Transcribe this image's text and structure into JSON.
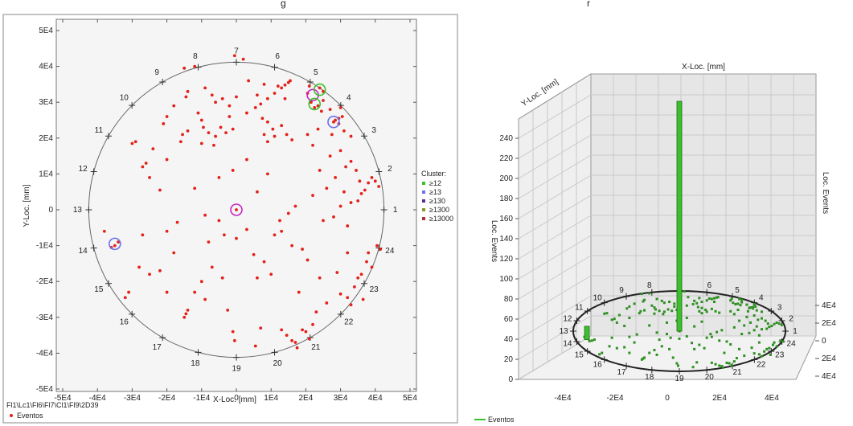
{
  "caption_top": "g",
  "caption_right": "r",
  "colors": {
    "event": "#e32119",
    "axis": "#555555",
    "grid": "#c9c9c9",
    "bar": "#3cbf2e",
    "panel_bg": "#eaeaea",
    "sel_purple": "#c428c4",
    "sel_blue": "#6e6ef0",
    "sel_green": "#3cbf2e"
  },
  "chart_data": [
    {
      "type": "scatter",
      "xlabel": "X-Loc. [mm]",
      "ylabel": "Y-Loc. [mm]",
      "xlim": [
        -50000,
        50000
      ],
      "ylim": [
        -50000,
        50000
      ],
      "x_ticks": [
        "-5E4",
        "-4E4",
        "-3E4",
        "-2E4",
        "-1E4",
        "0",
        "1E4",
        "2E4",
        "3E4",
        "4E4",
        "5E4"
      ],
      "y_ticks": [
        "5E4",
        "4E4",
        "3E4",
        "2E4",
        "1E4",
        "0",
        "-1E4",
        "-2E4",
        "-3E4",
        "-4E4",
        "-5E4"
      ],
      "grid": false,
      "circle_radius": 42500,
      "sensors": [
        "1",
        "2",
        "3",
        "4",
        "5",
        "6",
        "7",
        "8",
        "9",
        "10",
        "11",
        "12",
        "13",
        "14",
        "15",
        "16",
        "17",
        "18",
        "19",
        "20",
        "21",
        "22",
        "23",
        "24"
      ],
      "legend_title": "Cluster:",
      "legend": [
        {
          "label": "≥12",
          "color": "#3cbf2e"
        },
        {
          "label": "≥13",
          "color": "#6e6ef0"
        },
        {
          "label": "≥130",
          "color": "#5a2d8c"
        },
        {
          "label": "≥1300",
          "color": "#7f9c2a"
        },
        {
          "label": "≥13000",
          "color": "#b0303a"
        }
      ],
      "footer_path": "Fl1\\Lc1\\Fl6\\Fl7\\Cl1\\Fl9\\2D39",
      "series_legend": "Eventos",
      "selections": [
        {
          "x": 0,
          "y": 0,
          "color": "purple"
        },
        {
          "x": 22000,
          "y": 32000,
          "color": "purple"
        },
        {
          "x": 24000,
          "y": 33500,
          "color": "green"
        },
        {
          "x": 22500,
          "y": 29500,
          "color": "green"
        },
        {
          "x": 28000,
          "y": 24500,
          "color": "blue"
        },
        {
          "x": -35000,
          "y": -9500,
          "color": "blue"
        }
      ],
      "points": [
        [
          0,
          0
        ],
        [
          -500,
          43000
        ],
        [
          2000,
          42000
        ],
        [
          -12000,
          40000
        ],
        [
          -15000,
          39500
        ],
        [
          8000,
          35000
        ],
        [
          12000,
          34500
        ],
        [
          14000,
          34800
        ],
        [
          15000,
          35500
        ],
        [
          15500,
          36000
        ],
        [
          13000,
          34000
        ],
        [
          11000,
          32500
        ],
        [
          9000,
          31000
        ],
        [
          7000,
          29500
        ],
        [
          6000,
          32000
        ],
        [
          -9000,
          34000
        ],
        [
          -7000,
          32000
        ],
        [
          -6000,
          30000
        ],
        [
          -4000,
          31000
        ],
        [
          -2000,
          29000
        ],
        [
          0,
          31500
        ],
        [
          -14000,
          33000
        ],
        [
          -14500,
          31500
        ],
        [
          -18000,
          29000
        ],
        [
          -20000,
          26000
        ],
        [
          -21000,
          24000
        ],
        [
          -11000,
          27000
        ],
        [
          -10000,
          25000
        ],
        [
          -9500,
          23000
        ],
        [
          -8000,
          21500
        ],
        [
          -6000,
          20500
        ],
        [
          -4500,
          23000
        ],
        [
          -2000,
          26000
        ],
        [
          3000,
          27000
        ],
        [
          5500,
          28500
        ],
        [
          7500,
          25500
        ],
        [
          9000,
          24500
        ],
        [
          10500,
          22500
        ],
        [
          13000,
          23500
        ],
        [
          14500,
          21000
        ],
        [
          16000,
          19500
        ],
        [
          9000,
          19000
        ],
        [
          11000,
          20500
        ],
        [
          8000,
          21000
        ],
        [
          -3000,
          21500
        ],
        [
          -1000,
          22500
        ],
        [
          -6500,
          18000
        ],
        [
          -10000,
          18500
        ],
        [
          -14000,
          22000
        ],
        [
          -15500,
          21000
        ],
        [
          -16000,
          19000
        ],
        [
          -29000,
          19000
        ],
        [
          -30000,
          18500
        ],
        [
          -27000,
          12000
        ],
        [
          -25000,
          9000
        ],
        [
          -22000,
          5500
        ],
        [
          -20000,
          -6000
        ],
        [
          -17000,
          -3500
        ],
        [
          -9000,
          -1500
        ],
        [
          -5000,
          -3000
        ],
        [
          -3500,
          -7000
        ],
        [
          0,
          -8000
        ],
        [
          3000,
          -5500
        ],
        [
          5000,
          -12500
        ],
        [
          8000,
          -14500
        ],
        [
          10000,
          -18000
        ],
        [
          6000,
          -19000
        ],
        [
          -4000,
          -19000
        ],
        [
          -7000,
          -16000
        ],
        [
          -10000,
          -20000
        ],
        [
          -12000,
          -23000
        ],
        [
          -20000,
          -23000
        ],
        [
          -25000,
          -18000
        ],
        [
          -28000,
          -16000
        ],
        [
          -31000,
          -23000
        ],
        [
          -32000,
          -24500
        ],
        [
          -34000,
          -9000
        ],
        [
          -35000,
          -10000
        ],
        [
          -36000,
          -10500
        ],
        [
          -38000,
          -6000
        ],
        [
          -14000,
          -28000
        ],
        [
          -14500,
          -29000
        ],
        [
          -15000,
          -30000
        ],
        [
          -2500,
          -28000
        ],
        [
          -1000,
          -34000
        ],
        [
          -500,
          -36500
        ],
        [
          7000,
          -33000
        ],
        [
          13000,
          -33500
        ],
        [
          14500,
          -35000
        ],
        [
          16000,
          -36500
        ],
        [
          17000,
          -37000
        ],
        [
          17500,
          -38500
        ],
        [
          19000,
          -33500
        ],
        [
          20000,
          -34000
        ],
        [
          21000,
          -36000
        ],
        [
          22000,
          -32000
        ],
        [
          23000,
          -28500
        ],
        [
          26000,
          -26000
        ],
        [
          30000,
          -23500
        ],
        [
          32000,
          -24500
        ],
        [
          34000,
          -21500
        ],
        [
          35000,
          -19000
        ],
        [
          36000,
          -18000
        ],
        [
          37500,
          -14500
        ],
        [
          38000,
          -12000
        ],
        [
          39000,
          -16000
        ],
        [
          40500,
          -10000
        ],
        [
          41500,
          -11000
        ],
        [
          32000,
          -12000
        ],
        [
          29000,
          -17500
        ],
        [
          24000,
          -19000
        ],
        [
          20500,
          -14000
        ],
        [
          19000,
          -11000
        ],
        [
          16000,
          -10000
        ],
        [
          13000,
          -6000
        ],
        [
          12500,
          -3000
        ],
        [
          17000,
          1000
        ],
        [
          22000,
          4000
        ],
        [
          25000,
          -3000
        ],
        [
          28000,
          -2000
        ],
        [
          30000,
          1000
        ],
        [
          31000,
          5000
        ],
        [
          32000,
          -4500
        ],
        [
          33000,
          2000
        ],
        [
          35000,
          2500
        ],
        [
          36000,
          4500
        ],
        [
          37000,
          5500
        ],
        [
          38000,
          7500
        ],
        [
          39000,
          9000
        ],
        [
          40000,
          8000
        ],
        [
          41000,
          6500
        ],
        [
          35500,
          8000
        ],
        [
          34500,
          11000
        ],
        [
          33000,
          13500
        ],
        [
          31500,
          12000
        ],
        [
          28500,
          9000
        ],
        [
          26000,
          6000
        ],
        [
          24000,
          11000
        ],
        [
          27000,
          15000
        ],
        [
          30000,
          16500
        ],
        [
          22000,
          18000
        ],
        [
          20500,
          21000
        ],
        [
          23500,
          22500
        ],
        [
          27500,
          21000
        ],
        [
          29500,
          24000
        ],
        [
          31000,
          22000
        ],
        [
          33000,
          20500
        ],
        [
          30000,
          28500
        ],
        [
          27000,
          28000
        ],
        [
          25000,
          30500
        ],
        [
          21500,
          30000
        ],
        [
          20500,
          32500
        ],
        [
          21000,
          34500
        ],
        [
          24000,
          34000
        ],
        [
          25000,
          33000
        ],
        [
          22500,
          28500
        ],
        [
          23500,
          29000
        ],
        [
          24500,
          27500
        ],
        [
          28000,
          24500
        ],
        [
          28500,
          25000
        ],
        [
          29500,
          25500
        ],
        [
          30500,
          26000
        ],
        [
          -27000,
          -7000
        ],
        [
          -8000,
          -9000
        ],
        [
          -22000,
          -17000
        ],
        [
          -18000,
          -12000
        ],
        [
          18000,
          -23000
        ],
        [
          11000,
          -7000
        ],
        [
          3000,
          14000
        ],
        [
          -1000,
          11000
        ],
        [
          -12000,
          6000
        ],
        [
          -5000,
          9000
        ],
        [
          6000,
          5000
        ],
        [
          9000,
          10000
        ],
        [
          15000,
          -1000
        ],
        [
          -20000,
          14000
        ],
        [
          -24000,
          17000
        ],
        [
          -26000,
          13000
        ],
        [
          14000,
          31000
        ],
        [
          3500,
          36000
        ],
        [
          36500,
          -25000
        ],
        [
          33000,
          -26500
        ],
        [
          -9000,
          -25000
        ],
        [
          5500,
          -38000
        ]
      ]
    },
    {
      "type": "bar",
      "title": "X-Loc. [mm]",
      "xlabel": "X-Loc. [mm]",
      "ylabel": "Y-Loc. [mm]",
      "zlabel": "Loc. Events",
      "zlabel_right": "Loc. Events",
      "xlim": [
        -50000,
        50000
      ],
      "ylim": [
        -50000,
        50000
      ],
      "zlim": [
        0,
        240
      ],
      "x_ticks": [
        "-4E4",
        "-2E4",
        "0",
        "2E4",
        "4E4"
      ],
      "y_ticks": [
        "4E4",
        "2E4",
        "0",
        "2E4",
        "4E4"
      ],
      "z_ticks": [
        "240",
        "220",
        "200",
        "180",
        "160",
        "140",
        "120",
        "100",
        "80",
        "60",
        "40",
        "20",
        "0"
      ],
      "grid": true,
      "sensors": [
        "1",
        "2",
        "3",
        "4",
        "5",
        "6",
        "7",
        "8",
        "9",
        "10",
        "11",
        "12",
        "13",
        "14",
        "15",
        "16",
        "17",
        "18",
        "19",
        "20",
        "21",
        "22",
        "23",
        "24"
      ],
      "series_legend": "Eventos",
      "bars": [
        {
          "x": 0,
          "y": 0,
          "count": 240
        },
        {
          "x": -37000,
          "y": -9000,
          "count": 14
        }
      ]
    }
  ]
}
